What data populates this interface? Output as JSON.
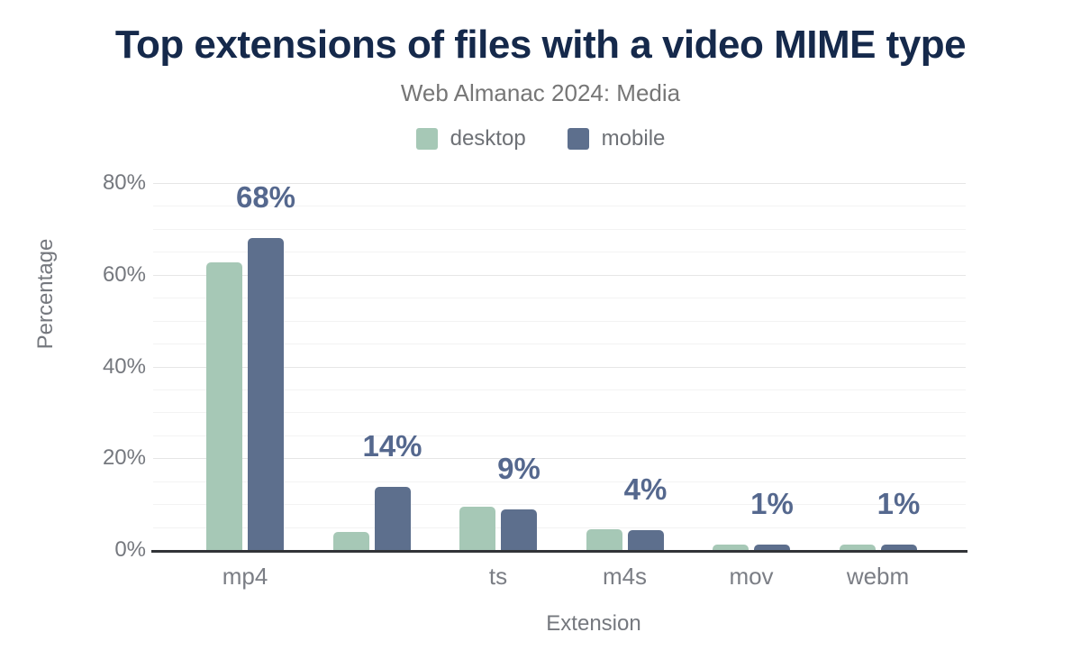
{
  "header": {
    "title": "Top extensions of files with a video MIME type",
    "subtitle": "Web Almanac 2024: Media"
  },
  "legend": [
    {
      "label": "desktop",
      "color": "#a6c8b6"
    },
    {
      "label": "mobile",
      "color": "#5d6f8d"
    }
  ],
  "chart_data": {
    "type": "bar",
    "title": "Top extensions of files with a video MIME type",
    "subtitle": "Web Almanac 2024: Media",
    "xlabel": "Extension",
    "ylabel": "Percentage",
    "categories": [
      "mp4",
      "",
      "ts",
      "m4s",
      "mov",
      "webm"
    ],
    "series": [
      {
        "name": "desktop",
        "color": "#a6c8b6",
        "values": [
          62.8,
          4.0,
          9.4,
          4.5,
          1.2,
          1.2
        ]
      },
      {
        "name": "mobile",
        "color": "#5d6f8d",
        "values": [
          68.0,
          13.7,
          8.9,
          4.4,
          1.2,
          1.2
        ]
      }
    ],
    "bar_labels": {
      "series": "mobile",
      "values": [
        "68%",
        "14%",
        "9%",
        "4%",
        "1%",
        "1%"
      ]
    },
    "ylim": [
      0,
      80
    ],
    "yticks": [
      {
        "value": 0,
        "label": "0%"
      },
      {
        "value": 20,
        "label": "20%"
      },
      {
        "value": 40,
        "label": "40%"
      },
      {
        "value": 60,
        "label": "60%"
      },
      {
        "value": 80,
        "label": "80%"
      }
    ],
    "grid": "horizontal minor lines every 5%, major every 20%",
    "legend_position": "top-center"
  },
  "colors": {
    "background": "#ffffff",
    "title": "#15294b",
    "subtitle": "#767676",
    "axis_text": "#75787e",
    "desktop": "#a6c8b6",
    "mobile": "#5d6f8d",
    "value_label": "#55688e",
    "gridline": "#ededed",
    "axis_line": "#323438"
  }
}
